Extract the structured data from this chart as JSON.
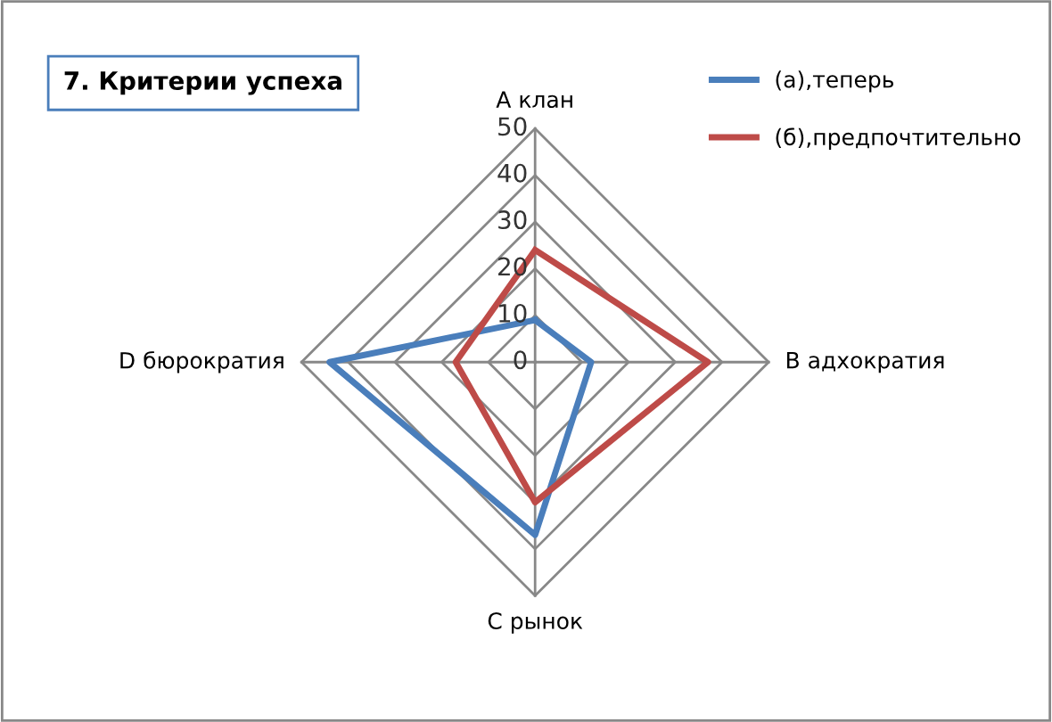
{
  "chart_data": {
    "type": "radar",
    "title": "7. Критерии успеха",
    "categories": [
      "А клан",
      "В адхократия",
      "С рынок",
      "D бюрократия"
    ],
    "series": [
      {
        "name": "(а),теперь",
        "color": "#4a7ebb",
        "values": [
          9,
          12,
          37,
          44
        ]
      },
      {
        "name": "(б),предпочтительно",
        "color": "#be4b48",
        "values": [
          24,
          37,
          30,
          17
        ]
      }
    ],
    "ylim": [
      0,
      50
    ],
    "yticks": [
      0,
      10,
      20,
      30,
      40,
      50
    ],
    "grid": true,
    "legend": "top right"
  }
}
